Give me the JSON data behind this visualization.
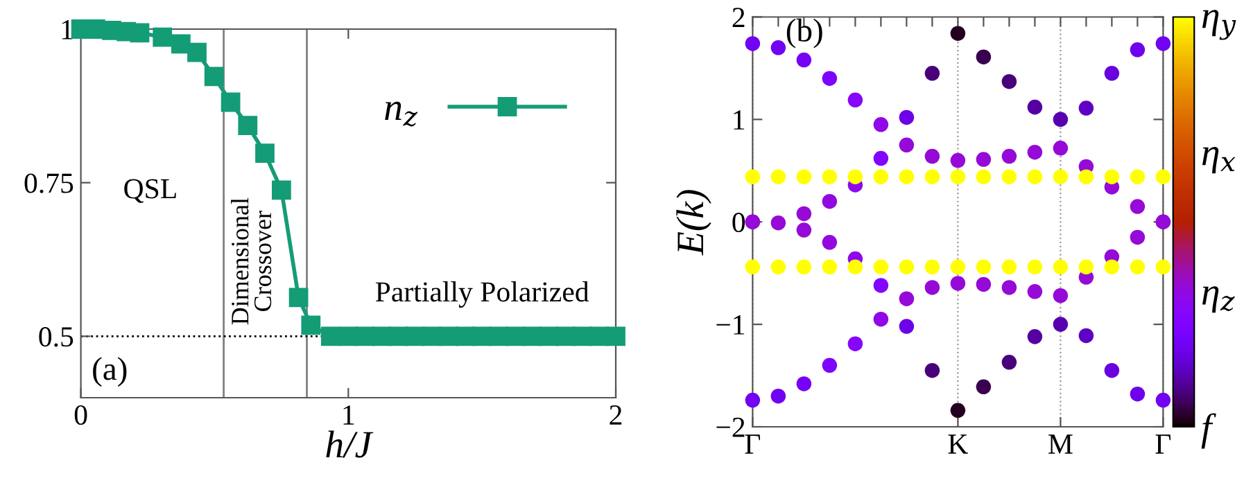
{
  "chart_data": [
    {
      "type": "line",
      "xlabel": "h/J",
      "xlim": [
        0,
        2
      ],
      "ylim": [
        0.4,
        1
      ],
      "xticks": [
        0,
        1,
        2
      ],
      "yticks": [
        0.5,
        0.75,
        1
      ],
      "marker": "square",
      "line_style": "solid",
      "legend": "top right",
      "grid": false,
      "annotations": [
        "(a)",
        "QSL",
        "Dimensional\nCrossover",
        "Partially Polarized"
      ],
      "ref_lines": [
        {
          "axis": "x",
          "value": 0.534,
          "color": "#808080",
          "line_style": "solid"
        },
        {
          "axis": "x",
          "value": 0.845,
          "color": "#808080",
          "line_style": "solid"
        },
        {
          "axis": "y",
          "value": 0.5,
          "color": "#000000",
          "line_style": "dotted"
        }
      ],
      "series": [
        {
          "name": "n$_{z}$",
          "color": "#149c77",
          "x": [
            0,
            0.055,
            0.115,
            0.17,
            0.22,
            0.305,
            0.374,
            0.434,
            0.498,
            0.56,
            0.624,
            0.688,
            0.75,
            0.814,
            0.86,
            0.934,
            1.0,
            1.0625,
            1.125,
            1.1875,
            1.25,
            1.3125,
            1.375,
            1.4375,
            1.5,
            1.5625,
            1.625,
            1.6875,
            1.75,
            1.8125,
            1.875,
            1.9375,
            2.0
          ],
          "values": [
            1.0,
            1.0,
            0.998,
            0.996,
            0.994,
            0.987,
            0.976,
            0.962,
            0.923,
            0.881,
            0.843,
            0.798,
            0.738,
            0.563,
            0.518,
            0.5,
            0.5,
            0.5,
            0.5,
            0.5,
            0.5,
            0.5,
            0.5,
            0.5,
            0.5,
            0.5,
            0.5,
            0.5,
            0.5,
            0.5,
            0.5,
            0.5,
            0.5
          ]
        }
      ]
    },
    {
      "type": "scatter",
      "ylabel": "E(k)",
      "ylim": [
        -2,
        2
      ],
      "categories": [
        "Γ",
        null,
        null,
        null,
        null,
        null,
        null,
        null,
        "K",
        null,
        null,
        null,
        "M",
        null,
        null,
        null,
        "Γ"
      ],
      "yticks": [
        {
          "value": -2,
          "label": "−2"
        },
        {
          "value": -1,
          "label": "−1"
        },
        0,
        1,
        2
      ],
      "grid": "x",
      "clim": [
        0,
        1
      ],
      "cticks": [
        {
          "value": 0,
          "label": "f"
        },
        {
          "value": 0.33,
          "label": "η$_{z}$"
        },
        {
          "value": 0.67,
          "label": "η$_{x}$"
        },
        {
          "value": 1,
          "label": "η$_{y}$"
        }
      ],
      "annotations": [
        "(b)"
      ],
      "series": [
        {
          "values": [
            1.74,
            1.7,
            1.58,
            1.4,
            1.19,
            0.95,
            0.75,
            0.64,
            0.6,
            0.61,
            0.64,
            0.68,
            0.72,
            0.54,
            0.34,
            0.15,
            0
          ],
          "colors": [
            "#7202f2",
            "#7202f2",
            "#7502f7",
            "#7d04fe",
            "#8706fa",
            "#9008e7",
            "#950ad7",
            "#950ad7",
            "#950ad7",
            "#950ad7",
            "#950ad7",
            "#950ad7",
            "#950ad7",
            "#950ad7",
            "#950ad7",
            "#950ad7",
            "#950ad7"
          ]
        },
        {
          "values": [
            0,
            null,
            0.08,
            0.2,
            0.36,
            0.62,
            1.02,
            1.45,
            1.84,
            1.61,
            1.37,
            1.12,
            1.0,
            1.11,
            1.45,
            1.68,
            1.74
          ],
          "colors": [
            "#950ad7",
            "#950ad7",
            "#950ad7",
            "#9209df",
            "#8e08ed",
            "#8205fe",
            "#6c02e7",
            "#48007b",
            "#240020",
            "#39004f",
            "#48007b",
            "#5500a2",
            "#5800af",
            "#5f01c5",
            "#6901df",
            "#6f02ed",
            "#7202f2"
          ]
        },
        {
          "values": [
            -1.74,
            -1.7,
            -1.58,
            -1.4,
            -1.19,
            -0.95,
            -0.75,
            -0.64,
            -0.6,
            -0.61,
            -0.64,
            -0.68,
            -0.72,
            -0.54,
            -0.34,
            -0.15,
            0
          ],
          "colors": [
            "#7202f2",
            "#7202f2",
            "#7502f7",
            "#7d04fe",
            "#8706fa",
            "#9008e7",
            "#950ad7",
            "#950ad7",
            "#950ad7",
            "#950ad7",
            "#950ad7",
            "#950ad7",
            "#950ad7",
            "#950ad7",
            "#950ad7",
            "#950ad7",
            "#950ad7"
          ]
        },
        {
          "values": [
            0,
            -0.01,
            -0.08,
            -0.2,
            -0.36,
            -0.62,
            -1.02,
            -1.45,
            -1.84,
            -1.61,
            -1.37,
            -1.12,
            -1.0,
            -1.11,
            -1.45,
            -1.68,
            -1.74
          ],
          "colors": [
            "#950ad7",
            "#950ad7",
            "#950ad7",
            "#9209df",
            "#8e08ed",
            "#8205fe",
            "#6c02e7",
            "#48007b",
            "#240020",
            "#39004f",
            "#48007b",
            "#5500a2",
            "#5800af",
            "#5f01c5",
            "#6901df",
            "#6f02ed",
            "#7202f2"
          ]
        },
        {
          "values": [
            0.44,
            0.44,
            0.44,
            0.44,
            0.44,
            0.44,
            0.44,
            0.44,
            0.44,
            0.44,
            0.44,
            0.44,
            0.44,
            0.44,
            0.44,
            0.44,
            0.44
          ],
          "color": "#ffff00"
        },
        {
          "values": [
            -0.44,
            -0.44,
            -0.44,
            -0.44,
            -0.44,
            -0.44,
            -0.44,
            -0.44,
            -0.44,
            -0.44,
            -0.44,
            -0.44,
            -0.44,
            -0.44,
            -0.44,
            -0.44,
            -0.44
          ],
          "color": "#ffff00"
        }
      ]
    }
  ]
}
